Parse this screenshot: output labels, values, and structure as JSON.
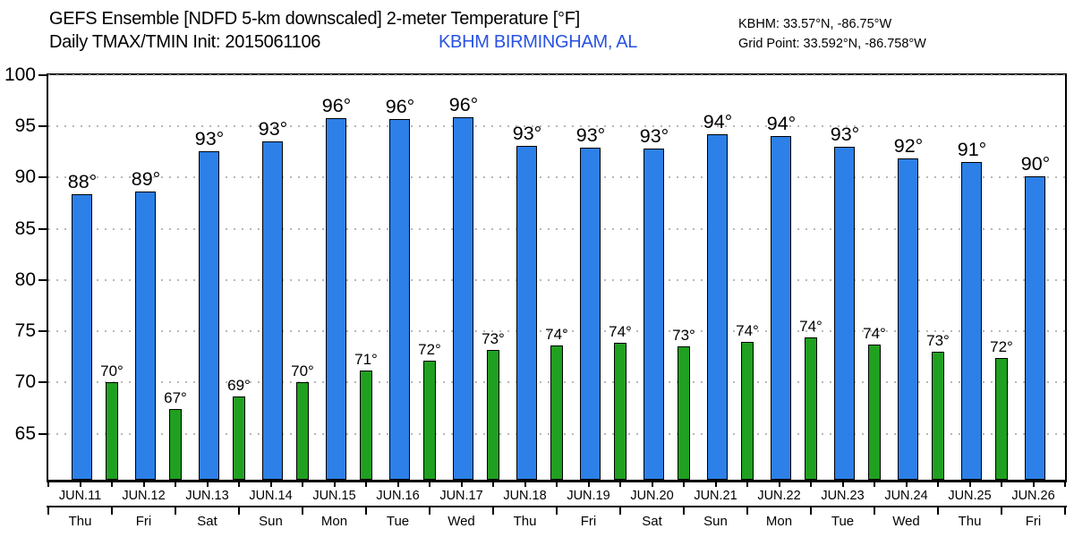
{
  "header": {
    "title": "GEFS Ensemble [NDFD 5-km downscaled] 2-meter Temperature [°F]",
    "subtitle": "Daily TMAX/TMIN Init: 2015061106",
    "station": "KBHM BIRMINGHAM, AL",
    "coords_line1": "KBHM: 33.57°N, -86.75°W",
    "coords_line2": "Grid Point: 33.592°N, -86.758°W"
  },
  "colors": {
    "tmax_bar": "#2C80E8",
    "tmin_bar": "#20A020",
    "station_text": "#2952E3",
    "grid": "#b8b8b8",
    "axis": "#000000"
  },
  "chart_data": {
    "type": "bar",
    "title": "GEFS Ensemble [NDFD 5-km downscaled] 2-meter Temperature [°F]",
    "subtitle": "Daily TMAX/TMIN Init: 2015061106",
    "station": "KBHM BIRMINGHAM, AL",
    "xlabel": "",
    "ylabel": "",
    "ylim": [
      60.5,
      100
    ],
    "yticks": [
      65,
      70,
      75,
      80,
      85,
      90,
      95,
      100
    ],
    "grid": "horizontal-dotted",
    "legend": "none",
    "series": [
      {
        "name": "TMAX",
        "color": "#2C80E8"
      },
      {
        "name": "TMIN",
        "color": "#20A020"
      }
    ],
    "days": [
      {
        "date": "JUN.11",
        "weekday": "Thu",
        "tmax": 88.4,
        "tmax_label": "88°",
        "tmin": 70.0,
        "tmin_label": "70°"
      },
      {
        "date": "JUN.12",
        "weekday": "Fri",
        "tmax": 88.6,
        "tmax_label": "89°",
        "tmin": 67.4,
        "tmin_label": "67°"
      },
      {
        "date": "JUN.13",
        "weekday": "Sat",
        "tmax": 92.6,
        "tmax_label": "93°",
        "tmin": 68.6,
        "tmin_label": "69°"
      },
      {
        "date": "JUN.14",
        "weekday": "Sun",
        "tmax": 93.5,
        "tmax_label": "93°",
        "tmin": 70.0,
        "tmin_label": "70°"
      },
      {
        "date": "JUN.15",
        "weekday": "Mon",
        "tmax": 95.8,
        "tmax_label": "96°",
        "tmin": 71.2,
        "tmin_label": "71°"
      },
      {
        "date": "JUN.16",
        "weekday": "Tue",
        "tmax": 95.7,
        "tmax_label": "96°",
        "tmin": 72.1,
        "tmin_label": "72°"
      },
      {
        "date": "JUN.17",
        "weekday": "Wed",
        "tmax": 95.9,
        "tmax_label": "96°",
        "tmin": 73.2,
        "tmin_label": "73°"
      },
      {
        "date": "JUN.18",
        "weekday": "Thu",
        "tmax": 93.1,
        "tmax_label": "93°",
        "tmin": 73.6,
        "tmin_label": "74°"
      },
      {
        "date": "JUN.19",
        "weekday": "Fri",
        "tmax": 92.9,
        "tmax_label": "93°",
        "tmin": 73.9,
        "tmin_label": "74°"
      },
      {
        "date": "JUN.20",
        "weekday": "Sat",
        "tmax": 92.8,
        "tmax_label": "93°",
        "tmin": 73.5,
        "tmin_label": "73°"
      },
      {
        "date": "JUN.21",
        "weekday": "Sun",
        "tmax": 94.2,
        "tmax_label": "94°",
        "tmin": 74.0,
        "tmin_label": "74°"
      },
      {
        "date": "JUN.22",
        "weekday": "Mon",
        "tmax": 94.1,
        "tmax_label": "94°",
        "tmin": 74.4,
        "tmin_label": "74°"
      },
      {
        "date": "JUN.23",
        "weekday": "Tue",
        "tmax": 93.0,
        "tmax_label": "93°",
        "tmin": 73.7,
        "tmin_label": "74°"
      },
      {
        "date": "JUN.24",
        "weekday": "Wed",
        "tmax": 91.9,
        "tmax_label": "92°",
        "tmin": 73.0,
        "tmin_label": "73°"
      },
      {
        "date": "JUN.25",
        "weekday": "Thu",
        "tmax": 91.5,
        "tmax_label": "91°",
        "tmin": 72.4,
        "tmin_label": "72°"
      },
      {
        "date": "JUN.26",
        "weekday": "Fri",
        "tmax": 90.1,
        "tmax_label": "90°",
        "tmin": null,
        "tmin_label": null
      }
    ],
    "layout_hint": "TMIN bar of each day is drawn straddling the boundary to the following day; no TMIN bar after JUN.26"
  }
}
